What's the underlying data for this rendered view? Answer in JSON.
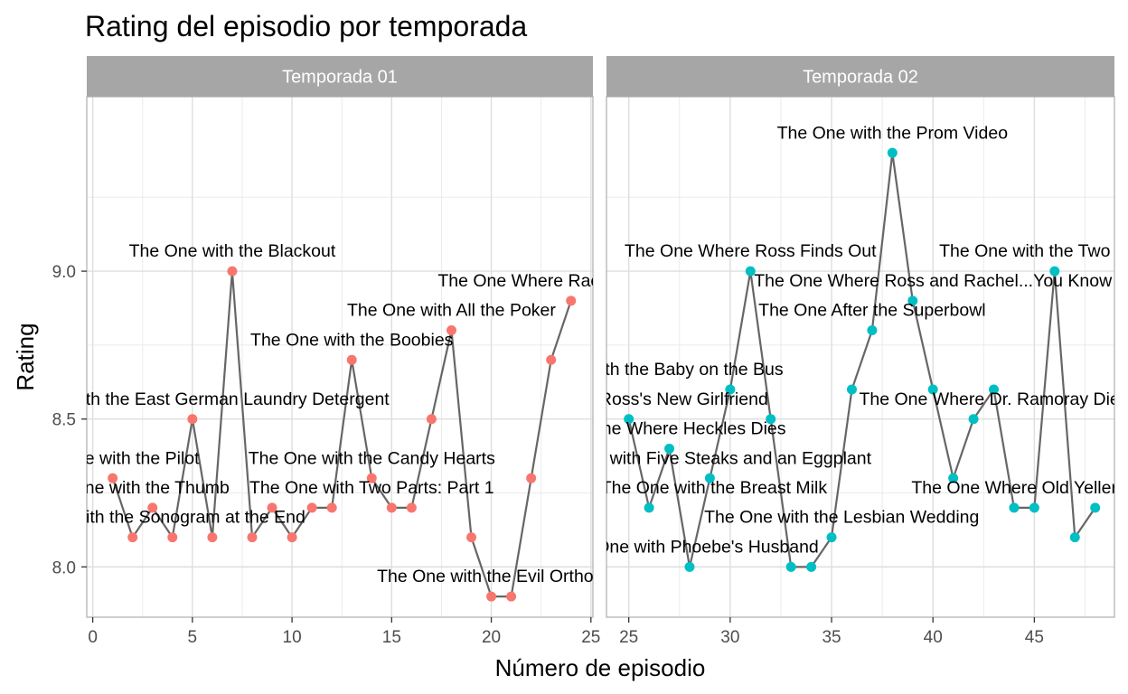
{
  "chart_data": {
    "type": "line",
    "title": "Rating del episodio por temporada",
    "xlabel": "Número de episodio",
    "ylabel": "Rating",
    "grid": true,
    "legend": "none",
    "line_color": "#666666",
    "panels": [
      {
        "strip": "Temporada 01",
        "color": "#F8766D",
        "xlim": [
          -0.3,
          25.1
        ],
        "ylim": [
          7.83,
          9.59
        ],
        "x_ticks": [
          0,
          5,
          10,
          15,
          20,
          25
        ],
        "y_ticks": [
          8.0,
          8.5,
          9.0
        ],
        "y_tick_labels": [
          "8.0",
          "8.5",
          "9.0"
        ],
        "points": [
          {
            "x": 1,
            "y": 8.3
          },
          {
            "x": 2,
            "y": 8.1
          },
          {
            "x": 3,
            "y": 8.2
          },
          {
            "x": 4,
            "y": 8.1
          },
          {
            "x": 5,
            "y": 8.5
          },
          {
            "x": 6,
            "y": 8.1
          },
          {
            "x": 7,
            "y": 9.0
          },
          {
            "x": 8,
            "y": 8.1
          },
          {
            "x": 9,
            "y": 8.2
          },
          {
            "x": 10,
            "y": 8.1
          },
          {
            "x": 11,
            "y": 8.2
          },
          {
            "x": 12,
            "y": 8.2
          },
          {
            "x": 13,
            "y": 8.7
          },
          {
            "x": 14,
            "y": 8.3
          },
          {
            "x": 15,
            "y": 8.2
          },
          {
            "x": 16,
            "y": 8.2
          },
          {
            "x": 17,
            "y": 8.5
          },
          {
            "x": 18,
            "y": 8.8
          },
          {
            "x": 19,
            "y": 8.1
          },
          {
            "x": 20,
            "y": 7.9
          },
          {
            "x": 21,
            "y": 7.9
          },
          {
            "x": 22,
            "y": 8.3
          },
          {
            "x": 23,
            "y": 8.7
          },
          {
            "x": 24,
            "y": 8.9
          }
        ],
        "labels": [
          {
            "x": 1,
            "y": 8.37,
            "text": "The One with the Pilot"
          },
          {
            "x": 2,
            "y": 8.27,
            "text": "The One with the Thumb"
          },
          {
            "x": 3,
            "y": 8.17,
            "text": "The One with the Sonogram at the End"
          },
          {
            "x": 5,
            "y": 8.57,
            "text": "The One with the East German Laundry Detergent"
          },
          {
            "x": 7,
            "y": 9.07,
            "text": "The One with the Blackout"
          },
          {
            "x": 13,
            "y": 8.77,
            "text": "The One with the Boobies"
          },
          {
            "x": 14,
            "y": 8.37,
            "text": "The One with the Candy Hearts"
          },
          {
            "x": 14,
            "y": 8.27,
            "text": "The One with Two Parts: Part 1"
          },
          {
            "x": 18,
            "y": 8.87,
            "text": "The One with All the Poker"
          },
          {
            "x": 21,
            "y": 7.97,
            "text": "The One with the Evil Orthodontist"
          },
          {
            "x": 24,
            "y": 8.97,
            "text": "The One Where Rachel Finds Out"
          }
        ]
      },
      {
        "strip": "Temporada 02",
        "color": "#00BFC4",
        "xlim": [
          23.9,
          48.95
        ],
        "ylim": [
          7.83,
          9.59
        ],
        "x_ticks": [
          25,
          30,
          35,
          40,
          45
        ],
        "y_ticks": [
          8.0,
          8.5,
          9.0
        ],
        "y_tick_labels": [
          "8.0",
          "8.5",
          "9.0"
        ],
        "points": [
          {
            "x": 25,
            "y": 8.5
          },
          {
            "x": 26,
            "y": 8.2
          },
          {
            "x": 27,
            "y": 8.4
          },
          {
            "x": 28,
            "y": 8.0
          },
          {
            "x": 29,
            "y": 8.3
          },
          {
            "x": 30,
            "y": 8.6
          },
          {
            "x": 31,
            "y": 9.0
          },
          {
            "x": 32,
            "y": 8.5
          },
          {
            "x": 33,
            "y": 8.0
          },
          {
            "x": 34,
            "y": 8.0
          },
          {
            "x": 35,
            "y": 8.1
          },
          {
            "x": 36,
            "y": 8.6
          },
          {
            "x": 37,
            "y": 8.8
          },
          {
            "x": 38,
            "y": 9.4
          },
          {
            "x": 39,
            "y": 8.9
          },
          {
            "x": 40,
            "y": 8.6
          },
          {
            "x": 41,
            "y": 8.3
          },
          {
            "x": 42,
            "y": 8.5
          },
          {
            "x": 43,
            "y": 8.6
          },
          {
            "x": 44,
            "y": 8.2
          },
          {
            "x": 45,
            "y": 8.2
          },
          {
            "x": 46,
            "y": 9.0
          },
          {
            "x": 47,
            "y": 8.1
          },
          {
            "x": 48,
            "y": 8.2
          }
        ],
        "labels": [
          {
            "x": 25,
            "y": 8.57,
            "text": "The One with Ross's New Girlfriend"
          },
          {
            "x": 26,
            "y": 8.67,
            "text": "The One with the Baby on the Bus"
          },
          {
            "x": 27,
            "y": 8.47,
            "text": "The One Where Heckles Dies"
          },
          {
            "x": 28,
            "y": 8.07,
            "text": "The One with Phoebe's Husband"
          },
          {
            "x": 28.7,
            "y": 8.37,
            "text": "The One with Five Steaks and an Eggplant"
          },
          {
            "x": 29.2,
            "y": 8.27,
            "text": "The One with the Breast Milk"
          },
          {
            "x": 31,
            "y": 9.07,
            "text": "The One Where Ross Finds Out"
          },
          {
            "x": 35.5,
            "y": 8.17,
            "text": "The One with the Lesbian Wedding"
          },
          {
            "x": 37,
            "y": 8.87,
            "text": "The One After the Superbowl"
          },
          {
            "x": 38,
            "y": 9.47,
            "text": "The One with the Prom Video"
          },
          {
            "x": 40,
            "y": 8.97,
            "text": "The One Where Ross and Rachel...You Know"
          },
          {
            "x": 43,
            "y": 8.57,
            "text": "The One Where Dr. Ramoray Dies"
          },
          {
            "x": 45,
            "y": 8.27,
            "text": "The One Where Old Yeller Dies"
          },
          {
            "x": 46,
            "y": 9.07,
            "text": "The One with the Two Parties"
          }
        ]
      }
    ]
  }
}
